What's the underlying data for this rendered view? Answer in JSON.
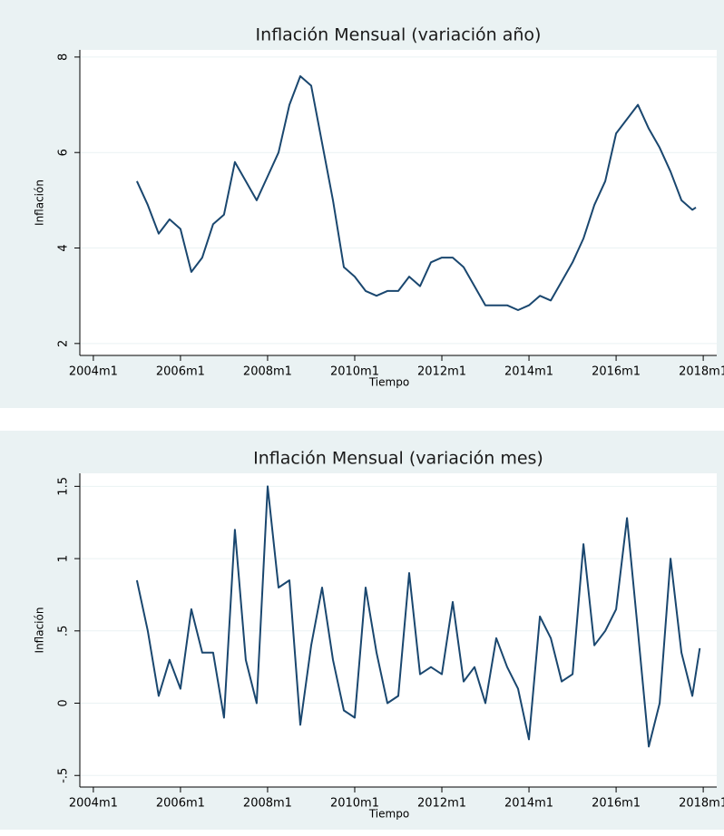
{
  "chart_data": [
    {
      "type": "line",
      "title": "Inflación Mensual (variación año)",
      "xlabel": "Tiempo",
      "ylabel": "Inflación",
      "color": "#1a476f",
      "grid": true,
      "x": [
        2005,
        2005.25,
        2005.5,
        2005.75,
        2006,
        2006.25,
        2006.5,
        2006.75,
        2007,
        2007.25,
        2007.5,
        2007.75,
        2008,
        2008.25,
        2008.5,
        2008.75,
        2009,
        2009.25,
        2009.5,
        2009.75,
        2010,
        2010.25,
        2010.5,
        2010.75,
        2011,
        2011.25,
        2011.5,
        2011.75,
        2012,
        2012.25,
        2012.5,
        2012.75,
        2013,
        2013.25,
        2013.5,
        2013.75,
        2014,
        2014.25,
        2014.5,
        2014.75,
        2015,
        2015.25,
        2015.5,
        2015.75,
        2016,
        2016.25,
        2016.5,
        2016.75,
        2017,
        2017.25,
        2017.5,
        2017.75,
        2017.83
      ],
      "values": [
        5.4,
        4.9,
        4.3,
        4.6,
        4.4,
        3.5,
        3.8,
        4.5,
        4.7,
        5.8,
        5.4,
        5.0,
        5.5,
        6.0,
        7.0,
        7.6,
        7.4,
        6.2,
        5.0,
        3.6,
        3.4,
        3.1,
        3.0,
        3.1,
        3.1,
        3.4,
        3.2,
        3.7,
        3.8,
        3.8,
        3.6,
        3.2,
        2.8,
        2.8,
        2.8,
        2.7,
        2.8,
        3.0,
        2.9,
        3.3,
        3.7,
        4.2,
        4.9,
        5.4,
        6.4,
        6.7,
        7.0,
        6.5,
        6.1,
        5.6,
        5.0,
        4.8,
        4.85
      ],
      "xlim": [
        2003.69,
        2018.31
      ],
      "xticks": [
        {
          "value": 2004,
          "label": "2004m1"
        },
        {
          "value": 2006,
          "label": "2006m1"
        },
        {
          "value": 2008,
          "label": "2008m1"
        },
        {
          "value": 2010,
          "label": "2010m1"
        },
        {
          "value": 2012,
          "label": "2012m1"
        },
        {
          "value": 2014,
          "label": "2014m1"
        },
        {
          "value": 2016,
          "label": "2016m1"
        },
        {
          "value": 2018,
          "label": "2018m1"
        }
      ],
      "ylim": [
        1.75,
        8.15
      ],
      "yticks": [
        2,
        4,
        6,
        8
      ]
    },
    {
      "type": "line",
      "title": "Inflación Mensual (variación mes)",
      "xlabel": "Tiempo",
      "ylabel": "Inflación",
      "color": "#1a476f",
      "grid": true,
      "x": [
        2005,
        2005.25,
        2005.5,
        2005.75,
        2006,
        2006.25,
        2006.5,
        2006.75,
        2007,
        2007.25,
        2007.5,
        2007.75,
        2008,
        2008.25,
        2008.5,
        2008.75,
        2009,
        2009.25,
        2009.5,
        2009.75,
        2010,
        2010.25,
        2010.5,
        2010.75,
        2011,
        2011.25,
        2011.5,
        2011.75,
        2012,
        2012.25,
        2012.5,
        2012.75,
        2013,
        2013.25,
        2013.5,
        2013.75,
        2014,
        2014.25,
        2014.5,
        2014.75,
        2015,
        2015.25,
        2015.5,
        2015.75,
        2016,
        2016.25,
        2016.5,
        2016.75,
        2017,
        2017.25,
        2017.5,
        2017.75,
        2017.92
      ],
      "values": [
        0.85,
        0.5,
        0.05,
        0.3,
        0.1,
        0.65,
        0.35,
        0.35,
        -0.1,
        1.2,
        0.3,
        0,
        1.5,
        0.8,
        0.85,
        -0.15,
        0.4,
        0.8,
        0.3,
        -0.05,
        -0.1,
        0.8,
        0.35,
        0,
        0.05,
        0.9,
        0.2,
        0.25,
        0.2,
        0.7,
        0.15,
        0.25,
        0,
        0.45,
        0.25,
        0.1,
        -0.25,
        0.6,
        0.45,
        0.15,
        0.2,
        1.1,
        0.4,
        0.5,
        0.65,
        1.28,
        0.5,
        -0.3,
        0,
        1,
        0.35,
        0.05,
        0.38
      ],
      "xlim": [
        2003.69,
        2018.31
      ],
      "xticks": [
        {
          "value": 2004,
          "label": "2004m1"
        },
        {
          "value": 2006,
          "label": "2006m1"
        },
        {
          "value": 2008,
          "label": "2008m1"
        },
        {
          "value": 2010,
          "label": "2010m1"
        },
        {
          "value": 2012,
          "label": "2012m1"
        },
        {
          "value": 2014,
          "label": "2014m1"
        },
        {
          "value": 2016,
          "label": "2016m1"
        },
        {
          "value": 2018,
          "label": "2018m1"
        }
      ],
      "ylim": [
        -0.58,
        1.59
      ],
      "yticks": [
        {
          "value": -0.5,
          "label": "-.5"
        },
        0,
        {
          "value": 0.5,
          "label": ".5"
        },
        1,
        1.5
      ]
    }
  ]
}
